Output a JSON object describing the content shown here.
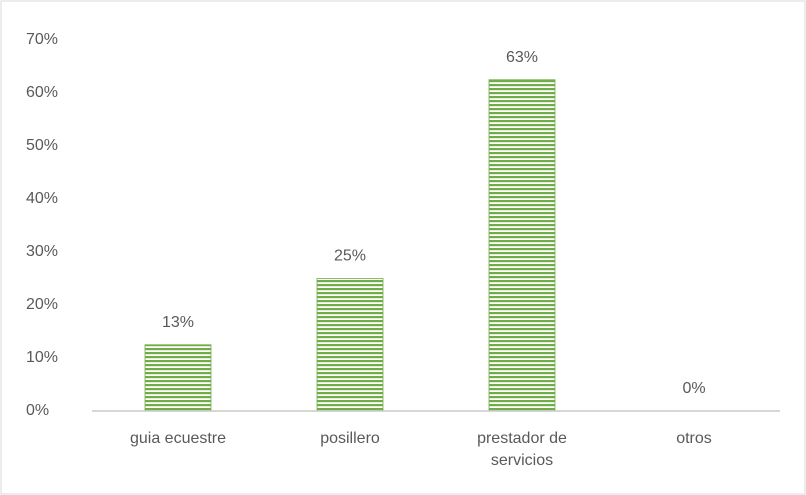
{
  "chart_data": {
    "type": "bar",
    "categories": [
      "guia ecuestre",
      "posillero",
      "prestador de servicios",
      "otros"
    ],
    "values": [
      12.5,
      25,
      62.5,
      0
    ],
    "value_labels": [
      "13%",
      "25%",
      "63%",
      "0%"
    ],
    "color": "#70ad47",
    "ylim": [
      0,
      70
    ],
    "yticks": [
      {
        "value": 0,
        "label": "0%"
      },
      {
        "value": 10,
        "label": "10%"
      },
      {
        "value": 20,
        "label": "20%"
      },
      {
        "value": 30,
        "label": "30%"
      },
      {
        "value": 40,
        "label": "40%"
      },
      {
        "value": 50,
        "label": "50%"
      },
      {
        "value": 60,
        "label": "60%"
      },
      {
        "value": 70,
        "label": "70%"
      }
    ],
    "grid": false
  }
}
